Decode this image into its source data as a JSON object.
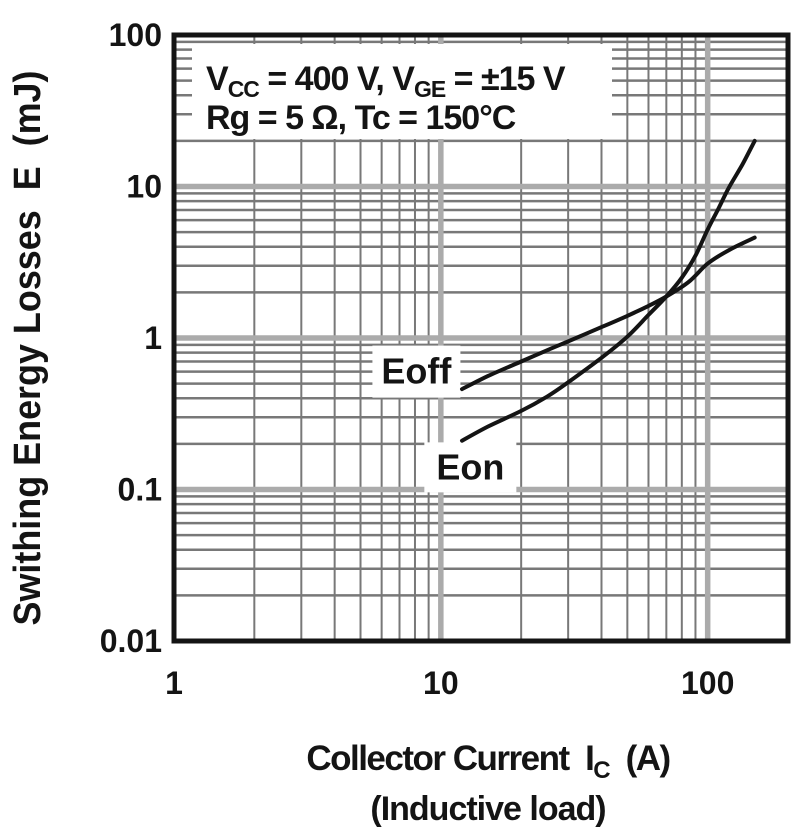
{
  "colors": {
    "background": "#ffffff",
    "frame": "#141414",
    "curve": "#141414",
    "grid_minor": "#787878",
    "grid_major": "#ababab",
    "text": "#141414"
  },
  "chart_data": {
    "type": "line",
    "title": "",
    "x_scale": "log",
    "y_scale": "log",
    "xlim": [
      1,
      200
    ],
    "ylim": [
      0.01,
      100
    ],
    "grid": "log major+minor, gray, on",
    "legend_position": "inline-curve-labels",
    "xlabel_parts": [
      {
        "t": "Collector Current  I"
      },
      {
        "t": "C",
        "sub": true
      },
      {
        "t": "  (A)"
      }
    ],
    "xlabel_sub": "(Inductive load)",
    "ylabel": "Swithing Energy Losses  E  (mJ)",
    "x_ticks": [
      {
        "v": 1,
        "label": "1"
      },
      {
        "v": 10,
        "label": "10"
      },
      {
        "v": 100,
        "label": "100"
      }
    ],
    "y_ticks": [
      {
        "v": 100,
        "label": "100"
      },
      {
        "v": 10,
        "label": "10"
      },
      {
        "v": 1,
        "label": "1"
      },
      {
        "v": 0.1,
        "label": "0.1"
      },
      {
        "v": 0.01,
        "label": "0.01"
      }
    ],
    "annotation_lines": [
      {
        "parts": [
          {
            "t": "V"
          },
          {
            "t": "CC",
            "sub": true
          },
          {
            "t": " = 400 V, V"
          },
          {
            "t": "GE",
            "sub": true
          },
          {
            "t": " = ±15 V"
          }
        ]
      },
      {
        "parts": [
          {
            "t": "Rg = 5 Ω, Tc = 150°C"
          }
        ]
      }
    ],
    "series": [
      {
        "name": "Eoff",
        "label_pos": [
          8.1,
          0.6
        ],
        "points": [
          [
            12,
            0.46
          ],
          [
            15,
            0.56
          ],
          [
            20,
            0.7
          ],
          [
            25,
            0.83
          ],
          [
            30,
            0.95
          ],
          [
            40,
            1.18
          ],
          [
            50,
            1.4
          ],
          [
            60,
            1.63
          ],
          [
            70,
            1.88
          ],
          [
            85,
            2.35
          ],
          [
            100,
            3.1
          ],
          [
            120,
            3.8
          ],
          [
            150,
            4.6
          ]
        ]
      },
      {
        "name": "Eon",
        "label_pos": [
          12.9,
          0.14
        ],
        "points": [
          [
            12,
            0.21
          ],
          [
            15,
            0.26
          ],
          [
            20,
            0.33
          ],
          [
            25,
            0.41
          ],
          [
            30,
            0.51
          ],
          [
            40,
            0.74
          ],
          [
            50,
            1.02
          ],
          [
            60,
            1.42
          ],
          [
            70,
            1.88
          ],
          [
            80,
            2.5
          ],
          [
            90,
            3.5
          ],
          [
            100,
            5.2
          ],
          [
            110,
            7.2
          ],
          [
            120,
            9.8
          ],
          [
            135,
            14
          ],
          [
            150,
            20
          ]
        ]
      }
    ]
  }
}
